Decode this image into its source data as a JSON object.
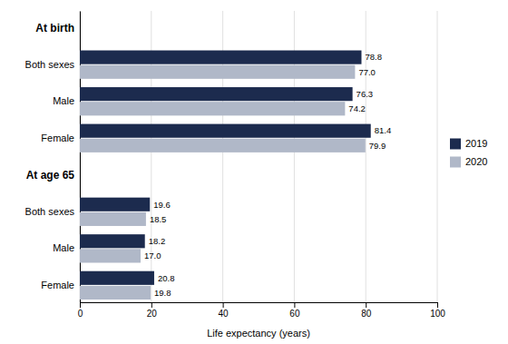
{
  "chart_data": {
    "type": "bar",
    "orientation": "horizontal",
    "xlabel": "Life expectancy (years)",
    "xlim": [
      0,
      100
    ],
    "xticks": [
      0,
      20,
      40,
      60,
      80,
      100
    ],
    "grid": true,
    "legend": "right",
    "data_labels": true,
    "annotations": [
      "At birth",
      "At age 65"
    ],
    "categories": [
      "Both sexes",
      "Male",
      "Female",
      "Both sexes",
      "Male",
      "Female"
    ],
    "series": [
      {
        "name": "2019",
        "color": "#1C2B4E",
        "values": [
          78.8,
          76.3,
          81.4,
          19.6,
          18.2,
          20.8
        ],
        "value_labels": [
          "78.8",
          "76.3",
          "81.4",
          "19.6",
          "18.2",
          "20.8"
        ]
      },
      {
        "name": "2020",
        "color": "#B0B8C8",
        "values": [
          77.0,
          74.2,
          79.9,
          18.5,
          17.0,
          19.8
        ],
        "value_labels": [
          "77.0",
          "74.2",
          "79.9",
          "18.5",
          "17.0",
          "19.8"
        ]
      }
    ]
  }
}
